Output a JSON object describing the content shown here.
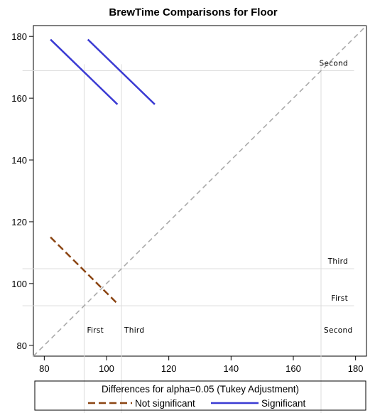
{
  "chart_data": {
    "type": "line",
    "title": "BrewTime Comparisons for Floor",
    "xlim": [
      76.5,
      183.5
    ],
    "ylim": [
      76.5,
      183.5
    ],
    "x_ticks": [
      80,
      100,
      120,
      140,
      160,
      180
    ],
    "y_ticks": [
      80,
      100,
      120,
      140,
      160,
      180
    ],
    "grid": false,
    "levels": [
      {
        "name": "First",
        "mean": 92.8
      },
      {
        "name": "Third",
        "mean": 104.8
      },
      {
        "name": "Second",
        "mean": 168.9
      }
    ],
    "reference_line": {
      "style": "dashed",
      "color": "#aaaaaa",
      "from": [
        76.5,
        76.5
      ],
      "to": [
        183.5,
        183.5
      ]
    },
    "series": [
      {
        "name": "Not significant",
        "color": "#8b4513",
        "style": "dashed",
        "segments": [
          [
            [
              82,
              115
            ],
            [
              103.5,
              93.5
            ]
          ]
        ]
      },
      {
        "name": "Significant",
        "color": "#3b3bd3",
        "style": "solid",
        "segments": [
          [
            [
              82,
              179
            ],
            [
              103.5,
              158
            ]
          ],
          [
            [
              94,
              179
            ],
            [
              115.5,
              158
            ]
          ]
        ]
      }
    ],
    "legend": {
      "title": "Differences for alpha=0.05 (Tukey Adjustment)",
      "placement": "bottom",
      "entries": [
        "Not significant",
        "Significant"
      ]
    }
  }
}
